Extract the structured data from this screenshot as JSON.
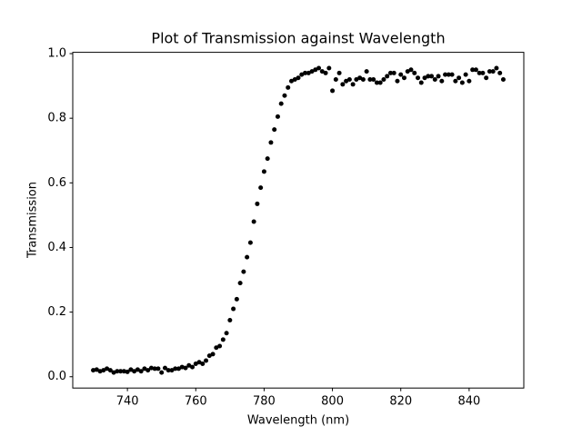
{
  "chart_data": {
    "type": "scatter",
    "title": "Plot of Transmission against Wavelength",
    "x_label": "Wavelength (nm)",
    "y_label": "Transmission",
    "color": "#000000",
    "x": [
      730,
      731,
      732,
      733,
      734,
      735,
      736,
      737,
      738,
      739,
      740,
      741,
      742,
      743,
      744,
      745,
      746,
      747,
      748,
      749,
      750,
      751,
      752,
      753,
      754,
      755,
      756,
      757,
      758,
      759,
      760,
      761,
      762,
      763,
      764,
      765,
      766,
      767,
      768,
      769,
      770,
      771,
      772,
      773,
      774,
      775,
      776,
      777,
      778,
      779,
      780,
      781,
      782,
      783,
      784,
      785,
      786,
      787,
      788,
      789,
      790,
      791,
      792,
      793,
      794,
      795,
      796,
      797,
      798,
      799,
      800,
      801,
      802,
      803,
      804,
      805,
      806,
      807,
      808,
      809,
      810,
      811,
      812,
      813,
      814,
      815,
      816,
      817,
      818,
      819,
      820,
      821,
      822,
      823,
      824,
      825,
      826,
      827,
      828,
      829,
      830,
      831,
      832,
      833,
      834,
      835,
      836,
      837,
      838,
      839,
      840,
      841,
      842,
      843,
      844,
      845,
      846,
      847,
      848,
      849,
      850
    ],
    "values": [
      0.02,
      0.022,
      0.017,
      0.02,
      0.025,
      0.02,
      0.013,
      0.017,
      0.017,
      0.017,
      0.015,
      0.022,
      0.017,
      0.022,
      0.017,
      0.025,
      0.02,
      0.027,
      0.025,
      0.025,
      0.013,
      0.027,
      0.02,
      0.02,
      0.025,
      0.025,
      0.03,
      0.027,
      0.035,
      0.03,
      0.04,
      0.045,
      0.04,
      0.05,
      0.065,
      0.07,
      0.09,
      0.095,
      0.115,
      0.135,
      0.175,
      0.21,
      0.24,
      0.29,
      0.325,
      0.37,
      0.415,
      0.48,
      0.535,
      0.585,
      0.635,
      0.675,
      0.725,
      0.765,
      0.805,
      0.845,
      0.87,
      0.895,
      0.915,
      0.92,
      0.925,
      0.935,
      0.94,
      0.94,
      0.945,
      0.95,
      0.955,
      0.945,
      0.94,
      0.955,
      0.885,
      0.92,
      0.94,
      0.905,
      0.915,
      0.92,
      0.905,
      0.92,
      0.925,
      0.92,
      0.945,
      0.92,
      0.92,
      0.91,
      0.91,
      0.92,
      0.93,
      0.94,
      0.94,
      0.915,
      0.935,
      0.925,
      0.945,
      0.95,
      0.94,
      0.925,
      0.91,
      0.925,
      0.93,
      0.93,
      0.92,
      0.93,
      0.915,
      0.935,
      0.935,
      0.935,
      0.915,
      0.925,
      0.91,
      0.935,
      0.915,
      0.95,
      0.95,
      0.94,
      0.94,
      0.925,
      0.945,
      0.945,
      0.955,
      0.94,
      0.92
    ],
    "xlim": [
      724,
      856
    ],
    "ylim": [
      -0.035,
      1.004
    ],
    "xticks": [
      740,
      760,
      780,
      800,
      820,
      840
    ],
    "yticks": [
      {
        "value": 0,
        "label": "0.0"
      },
      0.2,
      0.4,
      0.6,
      0.8,
      {
        "value": 1,
        "label": "1.0"
      }
    ]
  }
}
